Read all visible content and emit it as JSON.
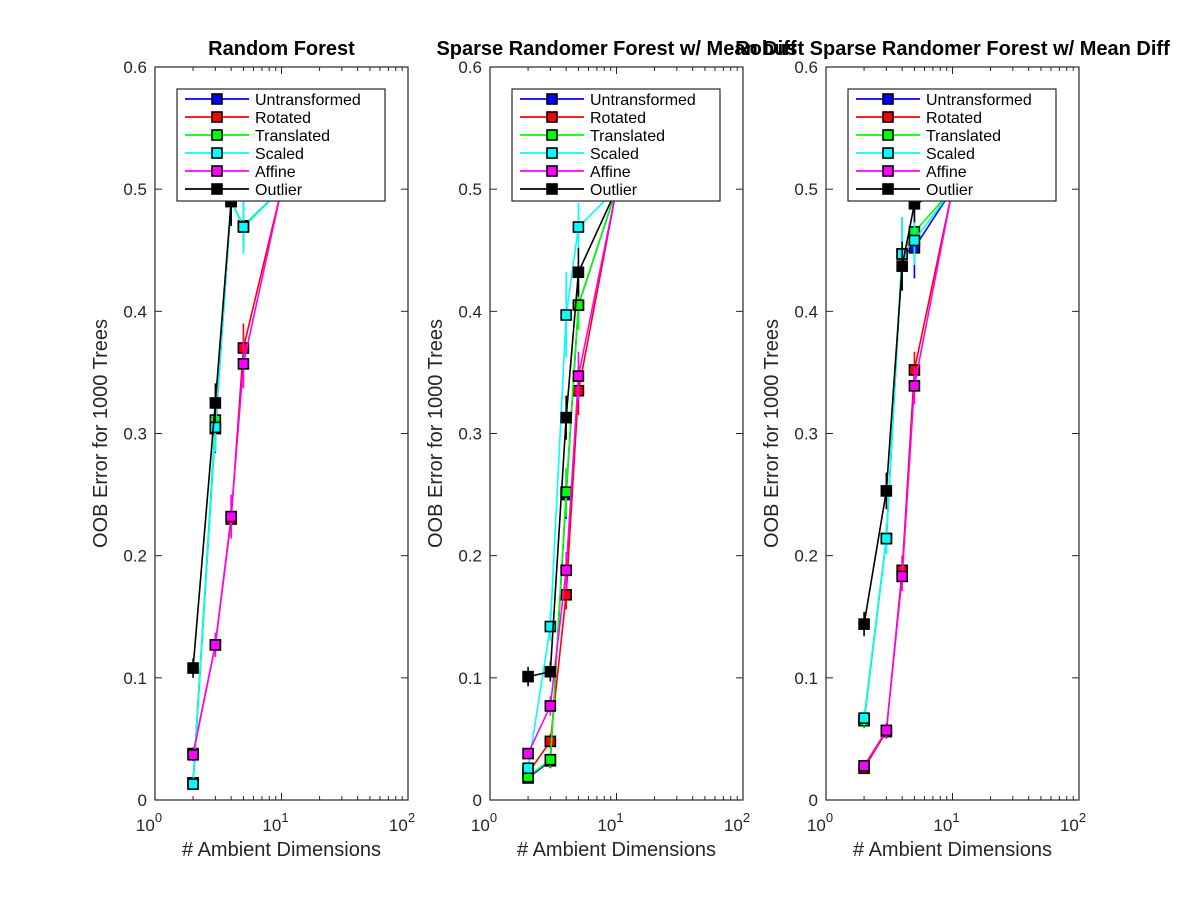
{
  "series_styles": [
    {
      "name": "Untransformed",
      "color": "#0000ff"
    },
    {
      "name": "Rotated",
      "color": "#ff0000"
    },
    {
      "name": "Translated",
      "color": "#00ff00"
    },
    {
      "name": "Scaled",
      "color": "#00ffff"
    },
    {
      "name": "Affine",
      "color": "#ff00ff"
    },
    {
      "name": "Outlier",
      "color": "#000000"
    }
  ],
  "chart_data": [
    {
      "type": "line",
      "title": "Random Forest",
      "xlabel": "# Ambient Dimensions",
      "ylabel": "OOB Error for 1000 Trees",
      "xscale": "log",
      "xlim": [
        1,
        100
      ],
      "ylim": [
        0,
        0.6
      ],
      "xticks": [
        {
          "base": "10",
          "exp": "0"
        },
        {
          "base": "10",
          "exp": "1"
        },
        {
          "base": "10",
          "exp": "2"
        }
      ],
      "yticks": [
        "0",
        "0.1",
        "0.2",
        "0.3",
        "0.4",
        "0.5",
        "0.6"
      ],
      "legend": "top-left",
      "x": [
        2,
        3,
        4,
        5,
        10
      ],
      "series": [
        {
          "name": "Untransformed",
          "values": [
            0.014,
            0.304,
            0.49,
            0.47,
            0.5
          ],
          "err": [
            0.005,
            0.02,
            0.02,
            0.02,
            0.01
          ]
        },
        {
          "name": "Rotated",
          "values": [
            0.038,
            0.127,
            0.23,
            0.37,
            0.5
          ],
          "err": [
            0.005,
            0.01,
            0.015,
            0.02,
            0.01
          ]
        },
        {
          "name": "Translated",
          "values": [
            0.014,
            0.311,
            0.49,
            0.47,
            0.5
          ],
          "err": [
            0.005,
            0.02,
            0.02,
            0.02,
            0.01
          ]
        },
        {
          "name": "Scaled",
          "values": [
            0.013,
            0.305,
            0.49,
            0.469,
            0.5
          ],
          "err": [
            0.005,
            0.02,
            0.02,
            0.022,
            0.01
          ]
        },
        {
          "name": "Affine",
          "values": [
            0.037,
            0.127,
            0.232,
            0.357,
            0.5
          ],
          "err": [
            0.005,
            0.01,
            0.018,
            0.02,
            0.01
          ]
        },
        {
          "name": "Outlier",
          "values": [
            0.108,
            0.325,
            0.49,
            0.5,
            0.5
          ],
          "err": [
            0.008,
            0.016,
            0.02,
            0.01,
            0.01
          ]
        }
      ]
    },
    {
      "type": "line",
      "title": "Sparse Randomer Forest w/ Mean Diff",
      "xlabel": "# Ambient Dimensions",
      "ylabel": "OOB Error for 1000 Trees",
      "xscale": "log",
      "xlim": [
        1,
        100
      ],
      "ylim": [
        0,
        0.6
      ],
      "xticks": [
        {
          "base": "10",
          "exp": "0"
        },
        {
          "base": "10",
          "exp": "1"
        },
        {
          "base": "10",
          "exp": "2"
        }
      ],
      "yticks": [
        "0",
        "0.1",
        "0.2",
        "0.3",
        "0.4",
        "0.5",
        "0.6"
      ],
      "legend": "top-left",
      "x": [
        2,
        3,
        4,
        5,
        10
      ],
      "series": [
        {
          "name": "Untransformed",
          "values": [
            0.018,
            0.032,
            0.25,
            0.405,
            0.5
          ],
          "err": [
            0.004,
            0.006,
            0.02,
            0.02,
            0.01
          ]
        },
        {
          "name": "Rotated",
          "values": [
            0.022,
            0.048,
            0.168,
            0.335,
            0.5
          ],
          "err": [
            0.004,
            0.006,
            0.012,
            0.02,
            0.01
          ]
        },
        {
          "name": "Translated",
          "values": [
            0.019,
            0.033,
            0.252,
            0.405,
            0.5
          ],
          "err": [
            0.004,
            0.006,
            0.02,
            0.02,
            0.01
          ]
        },
        {
          "name": "Scaled",
          "values": [
            0.026,
            0.142,
            0.397,
            0.469,
            0.5
          ],
          "err": [
            0.004,
            0.012,
            0.035,
            0.02,
            0.01
          ]
        },
        {
          "name": "Affine",
          "values": [
            0.038,
            0.077,
            0.188,
            0.347,
            0.5
          ],
          "err": [
            0.004,
            0.008,
            0.015,
            0.02,
            0.01
          ]
        },
        {
          "name": "Outlier",
          "values": [
            0.101,
            0.105,
            0.313,
            0.432,
            0.5
          ],
          "err": [
            0.008,
            0.008,
            0.018,
            0.02,
            0.01
          ]
        }
      ]
    },
    {
      "type": "line",
      "title": "Robust Sparse Randomer Forest w/ Mean Diff",
      "xlabel": "# Ambient Dimensions",
      "ylabel": "OOB Error for 1000 Trees",
      "xscale": "log",
      "xlim": [
        1,
        100
      ],
      "ylim": [
        0,
        0.6
      ],
      "xticks": [
        {
          "base": "10",
          "exp": "0"
        },
        {
          "base": "10",
          "exp": "1"
        },
        {
          "base": "10",
          "exp": "2"
        }
      ],
      "yticks": [
        "0",
        "0.1",
        "0.2",
        "0.3",
        "0.4",
        "0.5",
        "0.6"
      ],
      "legend": "top-left",
      "x": [
        2,
        3,
        4,
        5,
        10
      ],
      "series": [
        {
          "name": "Untransformed",
          "values": [
            0.065,
            0.214,
            0.447,
            0.452,
            0.5
          ],
          "err": [
            0.006,
            0.012,
            0.03,
            0.025,
            0.01
          ]
        },
        {
          "name": "Rotated",
          "values": [
            0.026,
            0.056,
            0.188,
            0.352,
            0.5
          ],
          "err": [
            0.004,
            0.006,
            0.012,
            0.015,
            0.01
          ]
        },
        {
          "name": "Translated",
          "values": [
            0.065,
            0.214,
            0.447,
            0.465,
            0.5
          ],
          "err": [
            0.006,
            0.012,
            0.03,
            0.02,
            0.01
          ]
        },
        {
          "name": "Scaled",
          "values": [
            0.067,
            0.214,
            0.447,
            0.458,
            0.5
          ],
          "err": [
            0.006,
            0.012,
            0.03,
            0.02,
            0.01
          ]
        },
        {
          "name": "Affine",
          "values": [
            0.028,
            0.057,
            0.183,
            0.339,
            0.5
          ],
          "err": [
            0.004,
            0.006,
            0.012,
            0.015,
            0.01
          ]
        },
        {
          "name": "Outlier",
          "values": [
            0.144,
            0.253,
            0.437,
            0.488,
            0.5
          ],
          "err": [
            0.01,
            0.015,
            0.02,
            0.015,
            0.01
          ]
        }
      ]
    }
  ]
}
